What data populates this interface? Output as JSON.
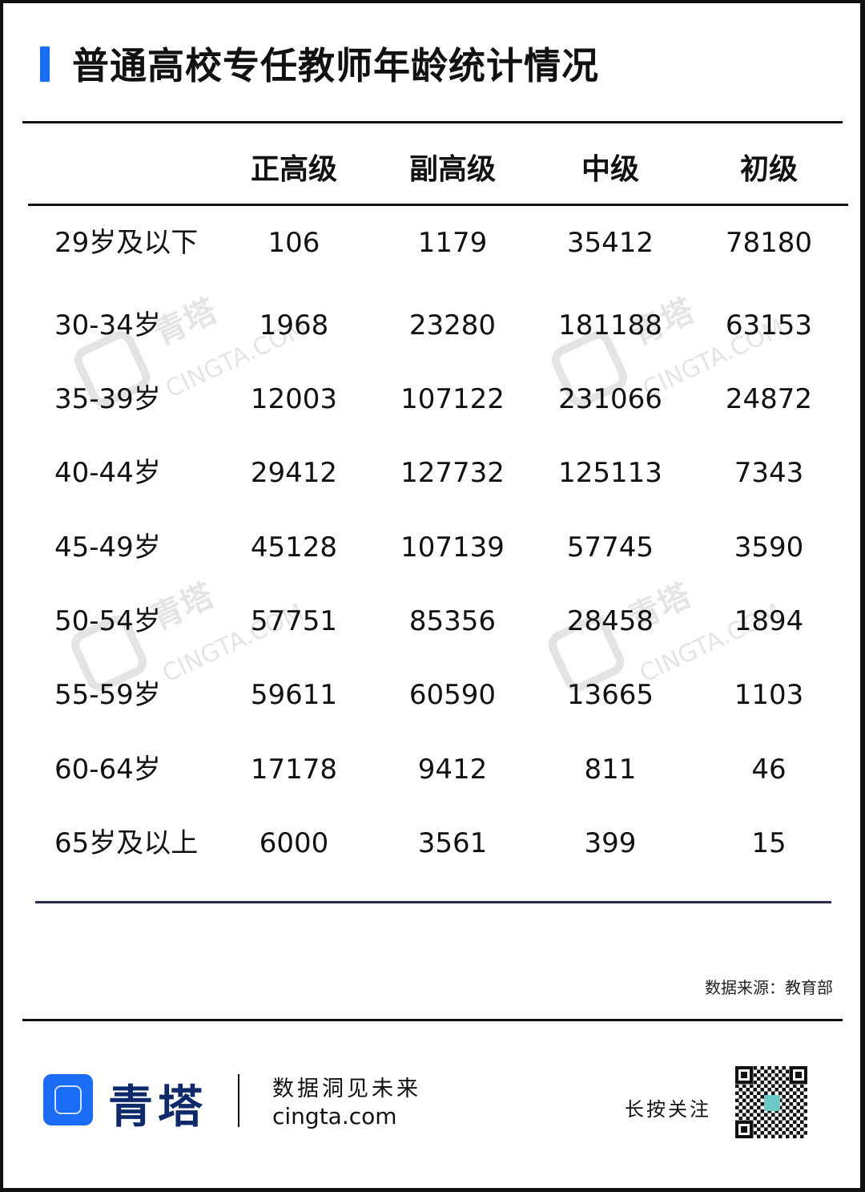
{
  "title": "普通高校专任教师年龄统计情况",
  "accent_color": "#1a6cf5",
  "table": {
    "columns": [
      "正高级",
      "副高级",
      "中级",
      "初级"
    ],
    "rows": [
      {
        "label": "29岁及以下",
        "values": [
          "106",
          "1179",
          "35412",
          "78180"
        ]
      },
      {
        "label": "30-34岁",
        "values": [
          "1968",
          "23280",
          "181188",
          "63153"
        ]
      },
      {
        "label": "35-39岁",
        "values": [
          "12003",
          "107122",
          "231066",
          "24872"
        ]
      },
      {
        "label": "40-44岁",
        "values": [
          "29412",
          "127732",
          "125113",
          "7343"
        ]
      },
      {
        "label": "45-49岁",
        "values": [
          "45128",
          "107139",
          "57745",
          "3590"
        ]
      },
      {
        "label": "50-54岁",
        "values": [
          "57751",
          "85356",
          "28458",
          "1894"
        ]
      },
      {
        "label": "55-59岁",
        "values": [
          "59611",
          "60590",
          "13665",
          "1103"
        ]
      },
      {
        "label": "60-64岁",
        "values": [
          "17178",
          "9412",
          "811",
          "46"
        ]
      },
      {
        "label": "65岁及以上",
        "values": [
          "6000",
          "3561",
          "399",
          "15"
        ]
      }
    ]
  },
  "watermark": {
    "cn": "青塔",
    "en": "CINGTA.COM"
  },
  "source": "数据来源：教育部",
  "footer": {
    "brand": "青塔",
    "slogan": "数据洞见未来",
    "site": "cingta.com",
    "follow": "长按关注",
    "qr_icon": "qr-code-icon"
  }
}
